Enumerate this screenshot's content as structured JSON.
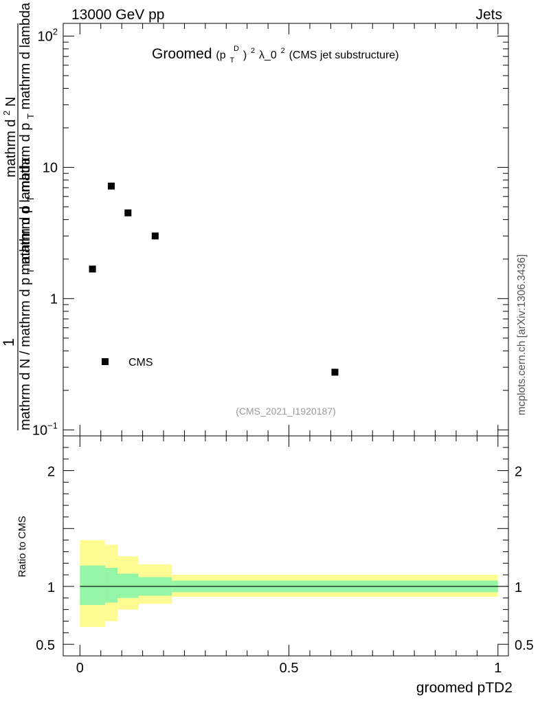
{
  "header": {
    "left": "13000 GeV pp",
    "right": "Jets"
  },
  "side_label": "mcplots.cern.ch [arXiv:1306.3436]",
  "chart_data": [
    {
      "type": "scatter",
      "title": "Groomed (p_T^D)^2 λ_0^2 (CMS jet substructure)",
      "title_parts": {
        "main": "Groomed",
        "formula_p": "(p",
        "formula_T": "T",
        "formula_D": "D",
        "formula_close": ")",
        "formula_sq": "2",
        "formula_lambda": " λ_0",
        "formula_sq2": "2",
        "formula_suffix": " (CMS jet substructure)"
      },
      "ylabel_top": "1",
      "ylabel_num": "mathrm d N / mathrm d p_T mathrm d p_T mathrm d lambda",
      "ylabel_den": "mathrm d N / mathrm d p_T mathrm d lambda",
      "ylabel_parts": {
        "num_a": "mathrm d",
        "num_sup": "2",
        "num_b": "N",
        "den_a": "mathrm d p",
        "den_sub1": "T",
        "den_b": " mathrm d p",
        "den_sub2": "T",
        "den_c": " mathrm d lambda",
        "low_a": "mathrm d N / mathrm d p",
        "low_sub": "T",
        "low_b": " mathrm d p",
        "low_sub2": "T",
        "low_c": "mathrm d lambda"
      },
      "yscale": "log",
      "ylim": [
        0.09,
        125
      ],
      "xlim": [
        -0.04,
        1.025
      ],
      "ytick_labels": [
        {
          "base": "10",
          "exp": "2",
          "value": 100
        },
        {
          "base": "10",
          "exp": "",
          "value": 10
        },
        {
          "base": "1",
          "exp": "",
          "value": 1
        },
        {
          "base": "10",
          "exp": "−1",
          "value": 0.1
        }
      ],
      "series": [
        {
          "name": "CMS",
          "marker": "square",
          "points": [
            {
              "x": 0.03,
              "y": 1.68
            },
            {
              "x": 0.075,
              "y": 7.2
            },
            {
              "x": 0.115,
              "y": 4.5
            },
            {
              "x": 0.18,
              "y": 3.0
            },
            {
              "x": 0.61,
              "y": 0.275
            }
          ]
        }
      ],
      "legend": {
        "placement": "bottom-left",
        "label": "CMS"
      },
      "watermark": "(CMS_2021_I1920187)"
    },
    {
      "type": "area",
      "ylabel": "Ratio to CMS",
      "xlabel": "groomed pTD2",
      "ylim": [
        0.4,
        2.3
      ],
      "xlim": [
        -0.04,
        1.025
      ],
      "xtick_labels": [
        {
          "label": "0",
          "value": 0
        },
        {
          "label": "0.5",
          "value": 0.5
        },
        {
          "label": "1",
          "value": 1
        }
      ],
      "ytick_labels": [
        {
          "label": "2",
          "value": 2
        },
        {
          "label": "1",
          "value": 1
        },
        {
          "label": "0.5",
          "value": 0.5
        }
      ],
      "reference_line": 1,
      "bands": [
        {
          "x0": 0.0,
          "x1": 0.06,
          "inner": [
            0.84,
            1.18
          ],
          "outer": [
            0.65,
            1.4
          ]
        },
        {
          "x0": 0.06,
          "x1": 0.09,
          "inner": [
            0.86,
            1.16
          ],
          "outer": [
            0.7,
            1.36
          ]
        },
        {
          "x0": 0.09,
          "x1": 0.14,
          "inner": [
            0.9,
            1.11
          ],
          "outer": [
            0.8,
            1.26
          ]
        },
        {
          "x0": 0.14,
          "x1": 0.22,
          "inner": [
            0.92,
            1.08
          ],
          "outer": [
            0.85,
            1.19
          ]
        },
        {
          "x0": 0.22,
          "x1": 1.0,
          "inner": [
            0.95,
            1.05
          ],
          "outer": [
            0.91,
            1.1
          ]
        }
      ],
      "colors": {
        "inner": "#93f5a5",
        "outer": "#fffb93"
      }
    }
  ]
}
